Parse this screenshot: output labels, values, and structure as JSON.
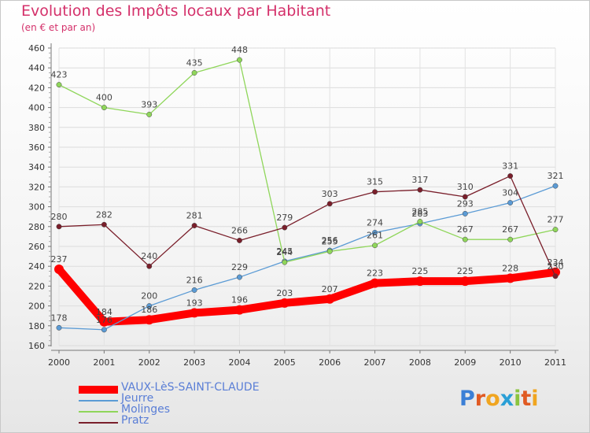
{
  "title": "Evolution des Impôts locaux par Habitant",
  "subtitle": "(en € et par an)",
  "logo_text": "Proxiti",
  "chart_data": {
    "type": "line",
    "categories": [
      "2000",
      "2001",
      "2002",
      "2003",
      "2004",
      "2005",
      "2006",
      "2007",
      "2008",
      "2009",
      "2010",
      "2011"
    ],
    "ylim": [
      160,
      460
    ],
    "yticks": [
      160,
      180,
      200,
      220,
      240,
      260,
      280,
      300,
      320,
      340,
      360,
      380,
      400,
      420,
      440,
      460
    ],
    "series": [
      {
        "name": "VAUX-LèS-SAINT-CLAUDE",
        "color": "#ff0000",
        "values": [
          237,
          184,
          186,
          193,
          196,
          203,
          207,
          223,
          225,
          225,
          228,
          234
        ]
      },
      {
        "name": "Jeurre",
        "color": "#5b9bd5",
        "values": [
          178,
          176,
          200,
          216,
          229,
          245,
          256,
          274,
          283,
          293,
          304,
          321
        ]
      },
      {
        "name": "Molinges",
        "color": "#8fd65a",
        "values": [
          423,
          400,
          393,
          435,
          448,
          244,
          255,
          261,
          285,
          267,
          267,
          277
        ]
      },
      {
        "name": "Pratz",
        "color": "#7a1f2b",
        "values": [
          280,
          282,
          240,
          281,
          266,
          279,
          303,
          315,
          317,
          310,
          331,
          230
        ]
      }
    ]
  }
}
